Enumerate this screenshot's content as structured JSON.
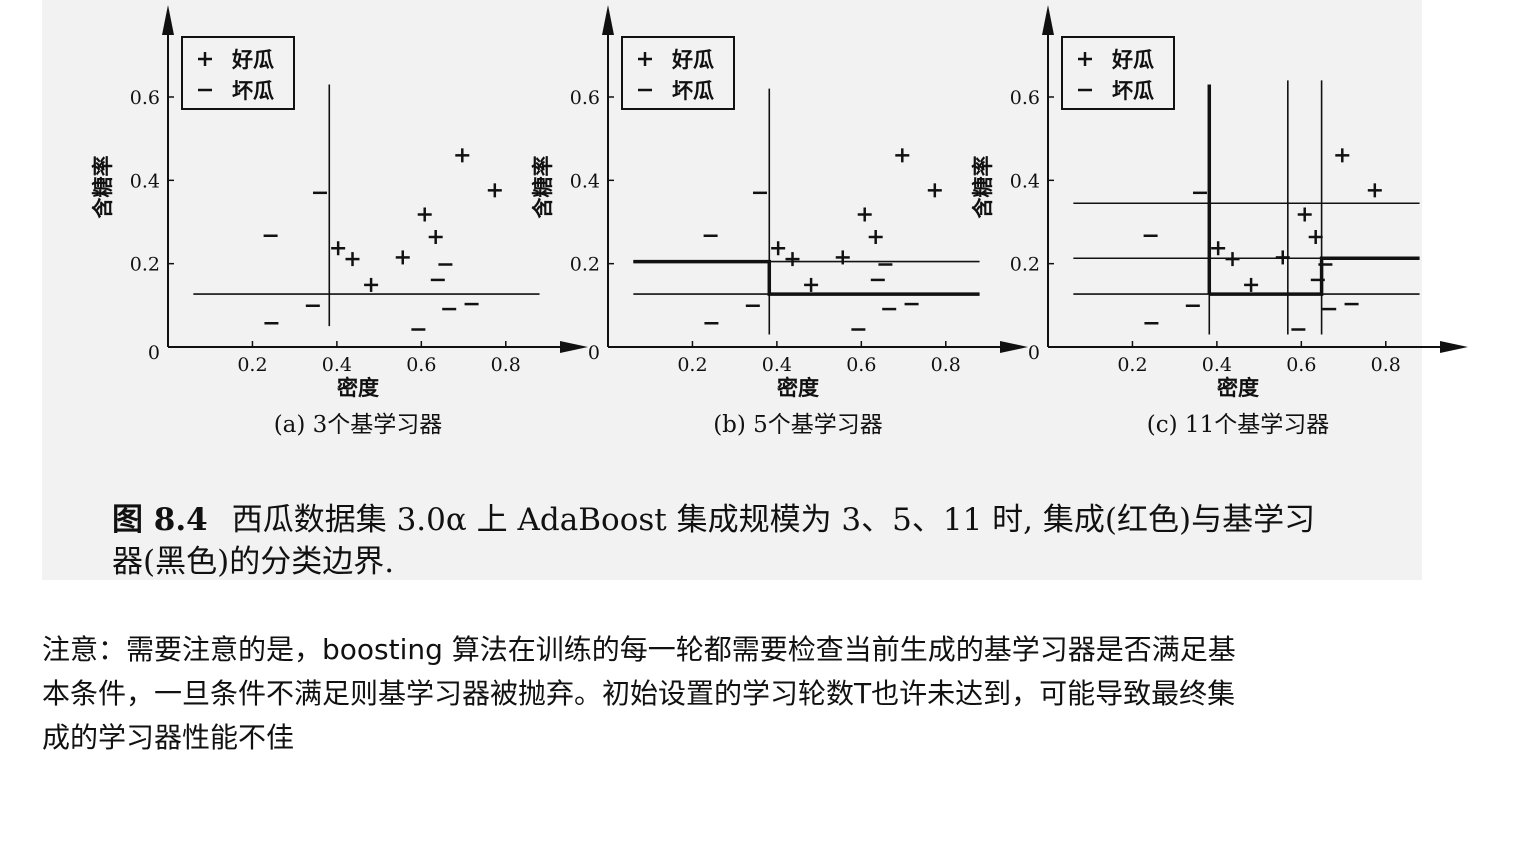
{
  "chart_data": [
    {
      "type": "scatter",
      "subtitle": "(a) 3个基学习器",
      "xlabel": "密度",
      "ylabel": "含糖率",
      "origin_label": "0",
      "xticks": [
        "0.2",
        "0.4",
        "0.6",
        "0.8"
      ],
      "yticks": [
        "0.2",
        "0.4",
        "0.6"
      ],
      "xlim": [
        0,
        0.9
      ],
      "ylim": [
        0,
        0.72
      ],
      "legend": {
        "position": "top-left",
        "entries": [
          {
            "symbol": "+",
            "label": "好瓜"
          },
          {
            "symbol": "−",
            "label": "坏瓜"
          }
        ]
      },
      "series": [
        {
          "name": "好瓜",
          "marker": "+",
          "points": [
            [
              0.697,
              0.46
            ],
            [
              0.774,
              0.376
            ],
            [
              0.634,
              0.264
            ],
            [
              0.608,
              0.318
            ],
            [
              0.556,
              0.215
            ],
            [
              0.403,
              0.237
            ],
            [
              0.481,
              0.149
            ],
            [
              0.437,
              0.211
            ]
          ]
        },
        {
          "name": "坏瓜",
          "marker": "−",
          "points": [
            [
              0.666,
              0.091
            ],
            [
              0.243,
              0.267
            ],
            [
              0.245,
              0.057
            ],
            [
              0.343,
              0.099
            ],
            [
              0.639,
              0.161
            ],
            [
              0.657,
              0.198
            ],
            [
              0.36,
              0.37
            ],
            [
              0.593,
              0.042
            ],
            [
              0.719,
              0.103
            ]
          ]
        }
      ],
      "boundaries": [
        {
          "color": "black",
          "type": "vertical",
          "x": 0.382,
          "y": [
            0.05,
            0.63
          ]
        },
        {
          "color": "black",
          "type": "horizontal",
          "y": 0.127,
          "x": [
            0.06,
            0.88
          ]
        }
      ]
    },
    {
      "type": "scatter",
      "subtitle": "(b) 5个基学习器",
      "xlabel": "密度",
      "ylabel": "含糖率",
      "origin_label": "0",
      "xticks": [
        "0.2",
        "0.4",
        "0.6",
        "0.8"
      ],
      "yticks": [
        "0.2",
        "0.4",
        "0.6"
      ],
      "xlim": [
        0,
        0.9
      ],
      "ylim": [
        0,
        0.72
      ],
      "legend": {
        "position": "top-left",
        "entries": [
          {
            "symbol": "+",
            "label": "好瓜"
          },
          {
            "symbol": "−",
            "label": "坏瓜"
          }
        ]
      },
      "series": [
        {
          "name": "好瓜",
          "marker": "+",
          "points": [
            [
              0.697,
              0.46
            ],
            [
              0.774,
              0.376
            ],
            [
              0.634,
              0.264
            ],
            [
              0.608,
              0.318
            ],
            [
              0.556,
              0.215
            ],
            [
              0.403,
              0.237
            ],
            [
              0.481,
              0.149
            ],
            [
              0.437,
              0.211
            ]
          ]
        },
        {
          "name": "坏瓜",
          "marker": "−",
          "points": [
            [
              0.666,
              0.091
            ],
            [
              0.243,
              0.267
            ],
            [
              0.245,
              0.057
            ],
            [
              0.343,
              0.099
            ],
            [
              0.639,
              0.161
            ],
            [
              0.657,
              0.198
            ],
            [
              0.36,
              0.37
            ],
            [
              0.593,
              0.042
            ],
            [
              0.719,
              0.103
            ]
          ]
        }
      ],
      "boundaries": [
        {
          "color": "black",
          "type": "vertical",
          "x": 0.382,
          "y": [
            0.03,
            0.62
          ]
        },
        {
          "color": "black",
          "type": "horizontal",
          "y": 0.205,
          "x": [
            0.06,
            0.88
          ]
        },
        {
          "color": "black",
          "type": "horizontal",
          "y": 0.127,
          "x": [
            0.06,
            0.88
          ]
        },
        {
          "color": "red",
          "type": "polyline",
          "points": [
            [
              0.06,
              0.205
            ],
            [
              0.382,
              0.205
            ],
            [
              0.382,
              0.127
            ],
            [
              0.88,
              0.127
            ]
          ]
        }
      ]
    },
    {
      "type": "scatter",
      "subtitle": "(c) 11个基学习器",
      "xlabel": "密度",
      "ylabel": "含糖率",
      "origin_label": "0",
      "xticks": [
        "0.2",
        "0.4",
        "0.6",
        "0.8"
      ],
      "yticks": [
        "0.2",
        "0.4",
        "0.6"
      ],
      "xlim": [
        0,
        0.9
      ],
      "ylim": [
        0,
        0.72
      ],
      "legend": {
        "position": "top-left",
        "entries": [
          {
            "symbol": "+",
            "label": "好瓜"
          },
          {
            "symbol": "−",
            "label": "坏瓜"
          }
        ]
      },
      "series": [
        {
          "name": "好瓜",
          "marker": "+",
          "points": [
            [
              0.697,
              0.46
            ],
            [
              0.774,
              0.376
            ],
            [
              0.634,
              0.264
            ],
            [
              0.608,
              0.318
            ],
            [
              0.556,
              0.215
            ],
            [
              0.403,
              0.237
            ],
            [
              0.481,
              0.149
            ],
            [
              0.437,
              0.211
            ]
          ]
        },
        {
          "name": "坏瓜",
          "marker": "−",
          "points": [
            [
              0.666,
              0.091
            ],
            [
              0.243,
              0.267
            ],
            [
              0.245,
              0.057
            ],
            [
              0.343,
              0.099
            ],
            [
              0.639,
              0.161
            ],
            [
              0.657,
              0.198
            ],
            [
              0.36,
              0.37
            ],
            [
              0.593,
              0.042
            ],
            [
              0.719,
              0.103
            ]
          ]
        }
      ],
      "boundaries": [
        {
          "color": "black",
          "type": "vertical",
          "x": 0.382,
          "y": [
            0.03,
            0.63
          ]
        },
        {
          "color": "black",
          "type": "vertical",
          "x": 0.568,
          "y": [
            0.03,
            0.64
          ]
        },
        {
          "color": "black",
          "type": "vertical",
          "x": 0.648,
          "y": [
            0.03,
            0.64
          ]
        },
        {
          "color": "black",
          "type": "horizontal",
          "y": 0.345,
          "x": [
            0.06,
            0.88
          ]
        },
        {
          "color": "black",
          "type": "horizontal",
          "y": 0.213,
          "x": [
            0.06,
            0.88
          ]
        },
        {
          "color": "black",
          "type": "horizontal",
          "y": 0.127,
          "x": [
            0.06,
            0.88
          ]
        },
        {
          "color": "red",
          "type": "polyline",
          "points": [
            [
              0.382,
              0.127
            ],
            [
              0.382,
              0.63
            ]
          ]
        },
        {
          "color": "red",
          "type": "polyline",
          "points": [
            [
              0.382,
              0.127
            ],
            [
              0.648,
              0.127
            ],
            [
              0.648,
              0.213
            ],
            [
              0.88,
              0.213
            ]
          ]
        }
      ]
    }
  ],
  "caption": {
    "label": "图 8.4",
    "line1": "西瓜数据集 3.0α 上 AdaBoost 集成规模为 3、5、11 时, 集成(红色)与基学习",
    "line2": "器(黑色)的分类边界."
  },
  "note": {
    "line1": "注意：需要注意的是，boosting 算法在训练的每一轮都需要检查当前生成的基学习器是否满足基",
    "line2": "本条件，一旦条件不满足则基学习器被抛弃。初始设置的学习轮数T也许未达到，可能导致最终集",
    "line3": "成的学习器性能不佳"
  },
  "colors": {
    "background": "#ffffff",
    "figure_background": "#f2f2f2",
    "ink": "#111111",
    "ensemble_boundary": "#111111"
  }
}
